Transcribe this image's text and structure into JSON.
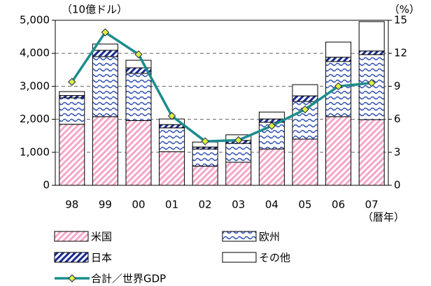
{
  "chart_data": {
    "type": "bar",
    "stacked": true,
    "y_label": "（10億ドル）",
    "y2_label": "（%）",
    "x_label": "（暦年）",
    "categories": [
      "98",
      "99",
      "00",
      "01",
      "02",
      "03",
      "04",
      "05",
      "06",
      "07"
    ],
    "ylim": [
      0,
      5000
    ],
    "yticks": [
      0,
      {
        "value": 1000,
        "label": "1,000"
      },
      {
        "value": 2000,
        "label": "2,000"
      },
      {
        "value": 3000,
        "label": "3,000"
      },
      {
        "value": 4000,
        "label": "4,000"
      },
      {
        "value": 5000,
        "label": "5,000"
      }
    ],
    "y2lim": [
      0,
      15
    ],
    "y2ticks": [
      0,
      3,
      6,
      9,
      12,
      15
    ],
    "grid": true,
    "series": [
      {
        "name": "米国",
        "color": "#f4a6c8",
        "values": [
          1850,
          2080,
          1960,
          1020,
          580,
          700,
          1100,
          1400,
          2080,
          1990
        ]
      },
      {
        "name": "欧州",
        "color": "#3050b0",
        "values": [
          800,
          1820,
          1430,
          720,
          520,
          570,
          810,
          1140,
          1670,
          1970
        ]
      },
      {
        "name": "日本",
        "color": "#1a2a90",
        "values": [
          70,
          190,
          170,
          100,
          60,
          90,
          100,
          170,
          130,
          110
        ]
      },
      {
        "name": "その他",
        "color": "#ffffff",
        "values": [
          120,
          190,
          230,
          170,
          150,
          170,
          210,
          340,
          460,
          890
        ]
      },
      {
        "name": "合計／世界GDP",
        "type": "line",
        "axis": "y2",
        "color": "#1b8c8c",
        "values": [
          9.4,
          13.9,
          11.9,
          6.3,
          4.0,
          4.1,
          5.4,
          6.9,
          9.0,
          9.3
        ]
      }
    ]
  }
}
